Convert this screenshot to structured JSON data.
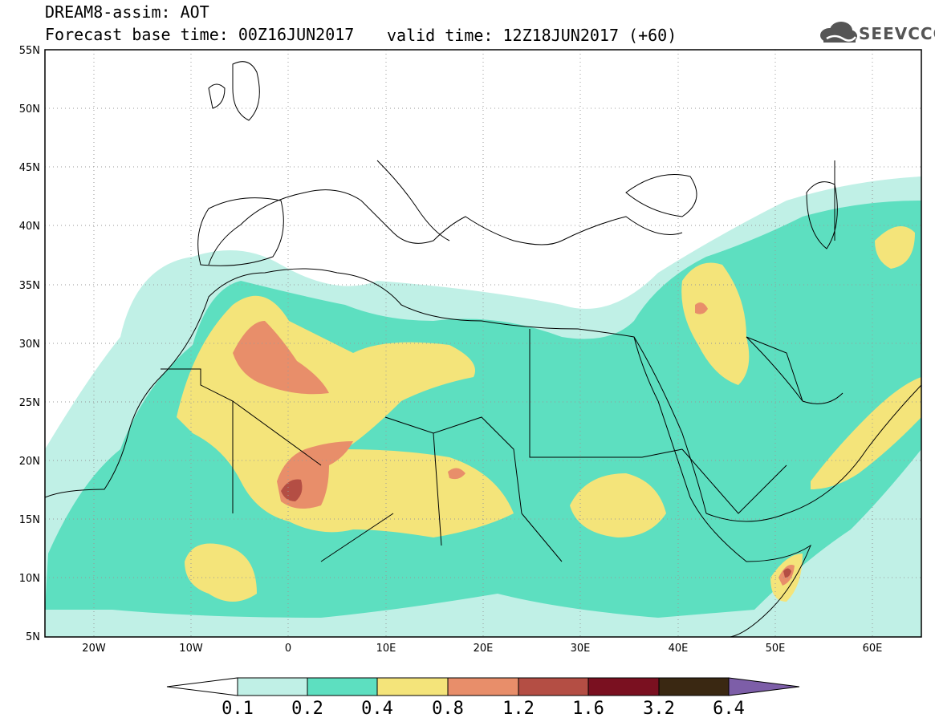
{
  "header": {
    "title": "DREAM8-assim: AOT",
    "base_time_label": "Forecast base time: 00Z16JUN2017",
    "valid_time_label": "valid time: 12Z18JUN2017 (+60)",
    "logo_text": "SEEVCCC"
  },
  "map": {
    "lon_range": [
      -25,
      65
    ],
    "lat_range": [
      5,
      55
    ],
    "lat_ticks": [
      "5N",
      "10N",
      "15N",
      "20N",
      "25N",
      "30N",
      "35N",
      "40N",
      "45N",
      "50N",
      "55N"
    ],
    "lon_ticks": [
      "20W",
      "10W",
      "0",
      "10E",
      "20E",
      "30E",
      "40E",
      "50E",
      "60E"
    ],
    "grid": true
  },
  "colorbar": {
    "labels": [
      "0.1",
      "0.2",
      "0.4",
      "0.8",
      "1.2",
      "1.6",
      "3.2",
      "6.4"
    ],
    "colors": [
      "#ffffff",
      "#c0f0e6",
      "#5ddfc0",
      "#f4e47a",
      "#e88e6a",
      "#b44e44",
      "#7a1020",
      "#3a2812",
      "#7d5ea8"
    ]
  }
}
